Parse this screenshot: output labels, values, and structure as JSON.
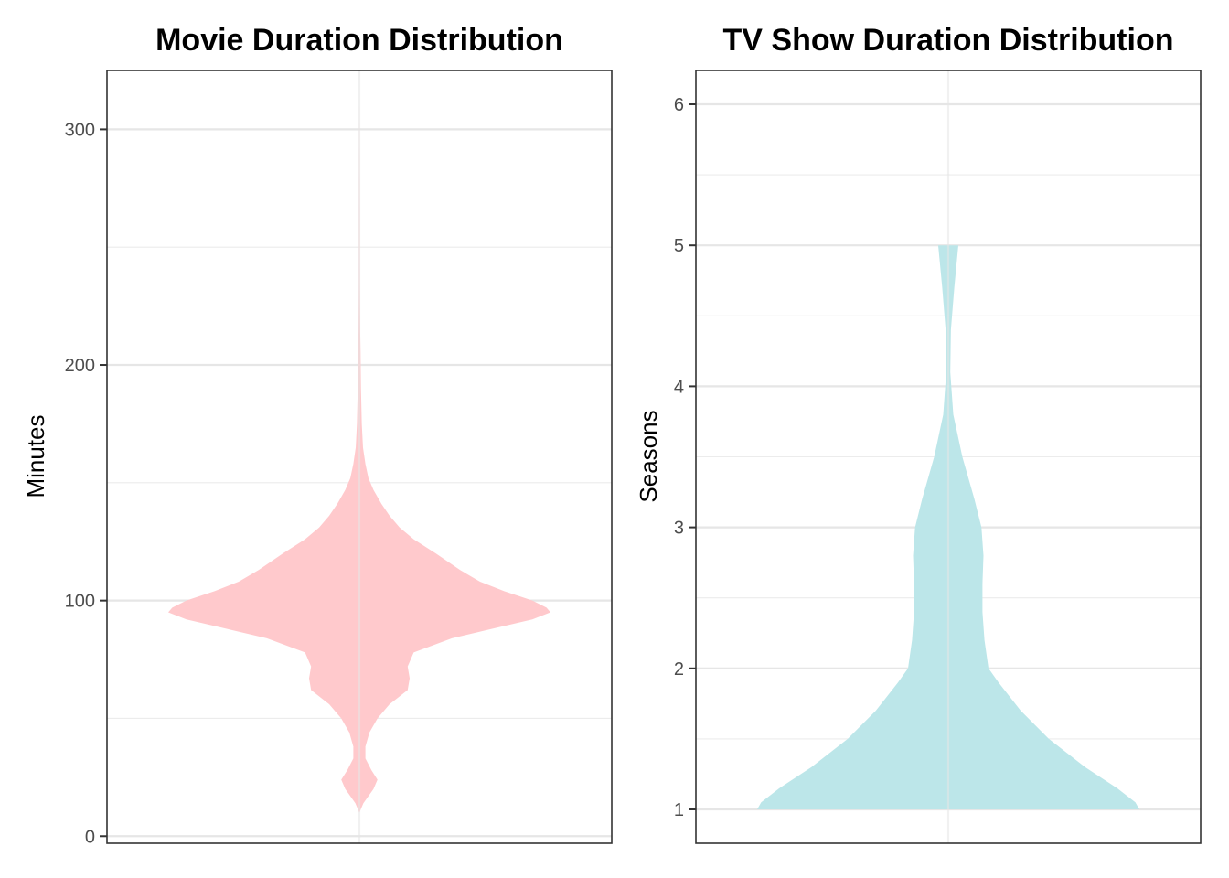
{
  "chart_data": [
    {
      "type": "violin",
      "title": "Movie Duration Distribution",
      "xlabel": "",
      "ylabel": "Minutes",
      "ylim": [
        -3,
        325
      ],
      "yticks": [
        0,
        100,
        200,
        300
      ],
      "ytick_labels": [
        "0",
        "100",
        "200",
        "300"
      ],
      "grid": true,
      "fill_color": "#ffc9cc",
      "density_profile": [
        {
          "y": 10,
          "w": 0.0
        },
        {
          "y": 14,
          "w": 0.02
        },
        {
          "y": 20,
          "w": 0.07
        },
        {
          "y": 24,
          "w": 0.09
        },
        {
          "y": 28,
          "w": 0.06
        },
        {
          "y": 33,
          "w": 0.03
        },
        {
          "y": 38,
          "w": 0.03
        },
        {
          "y": 44,
          "w": 0.05
        },
        {
          "y": 50,
          "w": 0.09
        },
        {
          "y": 56,
          "w": 0.15
        },
        {
          "y": 62,
          "w": 0.24
        },
        {
          "y": 67,
          "w": 0.25
        },
        {
          "y": 72,
          "w": 0.24
        },
        {
          "y": 78,
          "w": 0.27
        },
        {
          "y": 84,
          "w": 0.46
        },
        {
          "y": 88,
          "w": 0.66
        },
        {
          "y": 92,
          "w": 0.86
        },
        {
          "y": 95,
          "w": 0.95
        },
        {
          "y": 97,
          "w": 0.93
        },
        {
          "y": 100,
          "w": 0.86
        },
        {
          "y": 104,
          "w": 0.72
        },
        {
          "y": 108,
          "w": 0.6
        },
        {
          "y": 113,
          "w": 0.5
        },
        {
          "y": 120,
          "w": 0.38
        },
        {
          "y": 126,
          "w": 0.27
        },
        {
          "y": 131,
          "w": 0.2
        },
        {
          "y": 136,
          "w": 0.15
        },
        {
          "y": 141,
          "w": 0.11
        },
        {
          "y": 147,
          "w": 0.07
        },
        {
          "y": 152,
          "w": 0.045
        },
        {
          "y": 158,
          "w": 0.03
        },
        {
          "y": 165,
          "w": 0.018
        },
        {
          "y": 175,
          "w": 0.012
        },
        {
          "y": 190,
          "w": 0.008
        },
        {
          "y": 205,
          "w": 0.006
        },
        {
          "y": 215,
          "w": 0.004
        },
        {
          "y": 235,
          "w": 0.002
        },
        {
          "y": 270,
          "w": 0.0015
        },
        {
          "y": 312,
          "w": 0.0
        }
      ]
    },
    {
      "type": "violin",
      "title": "TV Show Duration Distribution",
      "xlabel": "",
      "ylabel": "Seasons",
      "ylim": [
        0.76,
        6.24
      ],
      "yticks": [
        1,
        2,
        3,
        4,
        5,
        6
      ],
      "ytick_labels": [
        "1",
        "2",
        "3",
        "4",
        "5",
        "6"
      ],
      "grid": true,
      "fill_color": "#bce6e9",
      "density_profile": [
        {
          "y": 1.0,
          "w": 0.95
        },
        {
          "y": 1.05,
          "w": 0.93
        },
        {
          "y": 1.15,
          "w": 0.84
        },
        {
          "y": 1.3,
          "w": 0.68
        },
        {
          "y": 1.5,
          "w": 0.5
        },
        {
          "y": 1.7,
          "w": 0.36
        },
        {
          "y": 1.9,
          "w": 0.25
        },
        {
          "y": 2.0,
          "w": 0.2
        },
        {
          "y": 2.2,
          "w": 0.18
        },
        {
          "y": 2.4,
          "w": 0.17
        },
        {
          "y": 2.6,
          "w": 0.17
        },
        {
          "y": 2.8,
          "w": 0.175
        },
        {
          "y": 3.0,
          "w": 0.165
        },
        {
          "y": 3.2,
          "w": 0.13
        },
        {
          "y": 3.5,
          "w": 0.07
        },
        {
          "y": 3.8,
          "w": 0.025
        },
        {
          "y": 4.1,
          "w": 0.01
        },
        {
          "y": 4.4,
          "w": 0.013
        },
        {
          "y": 4.7,
          "w": 0.03
        },
        {
          "y": 5.0,
          "w": 0.05
        }
      ]
    }
  ]
}
